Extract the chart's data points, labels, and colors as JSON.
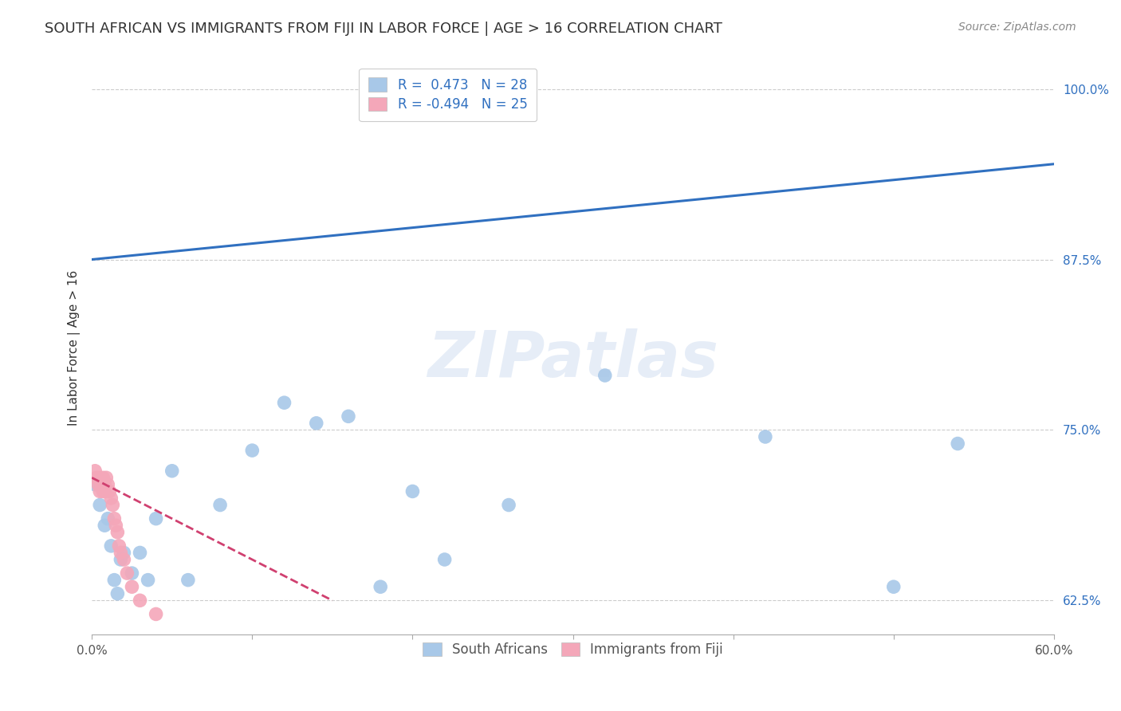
{
  "title": "SOUTH AFRICAN VS IMMIGRANTS FROM FIJI IN LABOR FORCE | AGE > 16 CORRELATION CHART",
  "source": "Source: ZipAtlas.com",
  "ylabel": "In Labor Force | Age > 16",
  "xlim": [
    0.0,
    0.6
  ],
  "ylim": [
    0.6,
    1.02
  ],
  "blue_r": 0.473,
  "blue_n": 28,
  "pink_r": -0.494,
  "pink_n": 25,
  "blue_color": "#a8c8e8",
  "pink_color": "#f4a7b9",
  "blue_line_color": "#3070c0",
  "pink_line_color": "#d04070",
  "grid_color": "#cccccc",
  "background_color": "#ffffff",
  "watermark": "ZIPatlas",
  "blue_scatter_x": [
    0.002,
    0.005,
    0.008,
    0.01,
    0.012,
    0.014,
    0.016,
    0.018,
    0.02,
    0.025,
    0.03,
    0.035,
    0.04,
    0.05,
    0.06,
    0.08,
    0.1,
    0.12,
    0.14,
    0.16,
    0.18,
    0.2,
    0.22,
    0.26,
    0.32,
    0.42,
    0.5,
    0.54
  ],
  "blue_scatter_y": [
    0.71,
    0.695,
    0.68,
    0.685,
    0.665,
    0.64,
    0.63,
    0.655,
    0.66,
    0.645,
    0.66,
    0.64,
    0.685,
    0.72,
    0.64,
    0.695,
    0.735,
    0.77,
    0.755,
    0.76,
    0.635,
    0.705,
    0.655,
    0.695,
    0.79,
    0.745,
    0.635,
    0.74
  ],
  "pink_scatter_x": [
    0.002,
    0.003,
    0.004,
    0.005,
    0.005,
    0.006,
    0.007,
    0.007,
    0.008,
    0.008,
    0.009,
    0.01,
    0.011,
    0.012,
    0.013,
    0.014,
    0.015,
    0.016,
    0.017,
    0.018,
    0.02,
    0.022,
    0.025,
    0.03,
    0.04
  ],
  "pink_scatter_y": [
    0.72,
    0.715,
    0.71,
    0.715,
    0.705,
    0.71,
    0.705,
    0.715,
    0.71,
    0.705,
    0.715,
    0.71,
    0.705,
    0.7,
    0.695,
    0.685,
    0.68,
    0.675,
    0.665,
    0.66,
    0.655,
    0.645,
    0.635,
    0.625,
    0.615
  ],
  "blue_line_x0": 0.0,
  "blue_line_x1": 0.6,
  "blue_line_y0": 0.875,
  "blue_line_y1": 0.945,
  "pink_line_x0": 0.0,
  "pink_line_x1": 0.15,
  "pink_line_y0": 0.715,
  "pink_line_y1": 0.625,
  "title_fontsize": 13,
  "axis_label_fontsize": 11,
  "tick_fontsize": 11,
  "legend_fontsize": 12,
  "source_fontsize": 10
}
